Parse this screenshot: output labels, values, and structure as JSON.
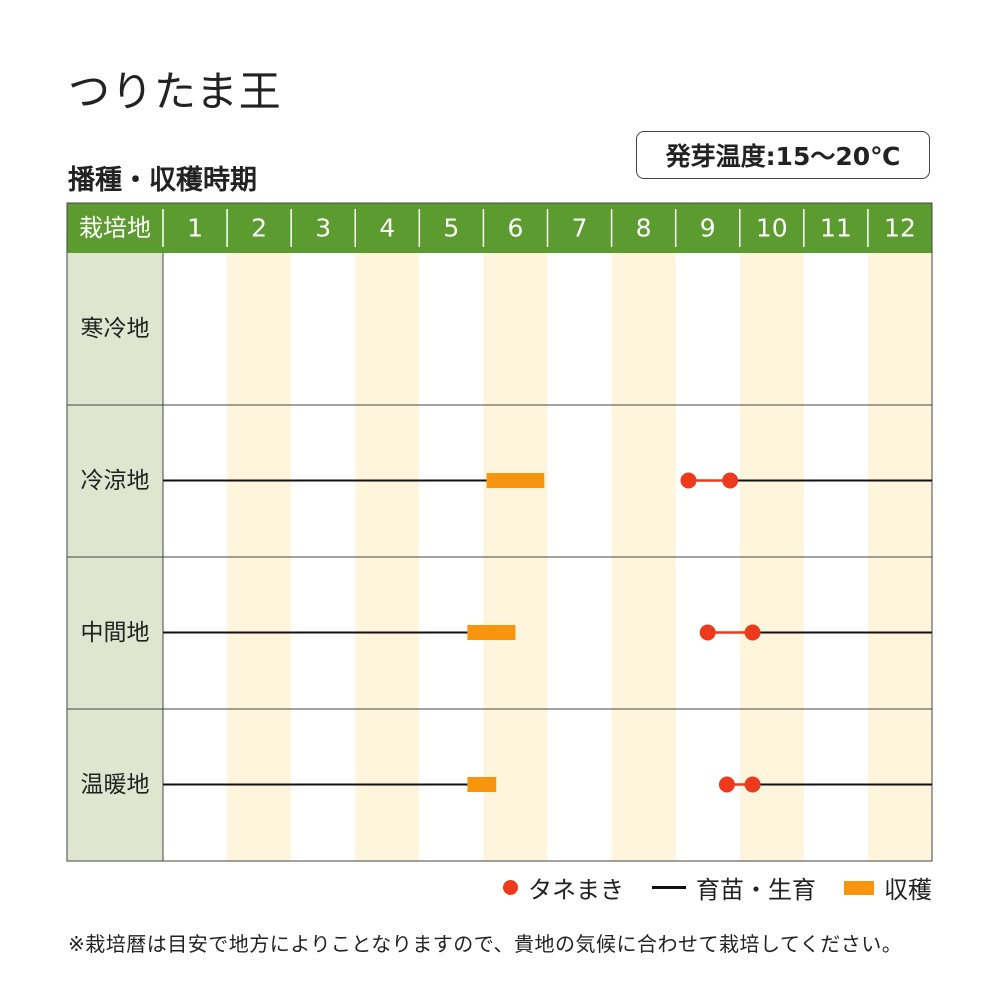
{
  "title": "つりたま王",
  "subtitle": "播種・収穫時期",
  "germination_temp": "発芽温度:15〜20℃",
  "colors": {
    "header_green": "#5c9b2f",
    "row_label_bg": "#dfe6cf",
    "band_alt": "#fdf5dc",
    "sowing": "#ee3a1c",
    "growing": "#111111",
    "harvest": "#f7950f"
  },
  "legend": {
    "sowing": "タネまき",
    "growing": "育苗・生育",
    "harvest": "収穫"
  },
  "note": "※栽培暦は目安で地方によりことなりますので、貴地の気候に合わせて栽培してください。",
  "chart_data": {
    "type": "gantt",
    "header_label": "栽培地",
    "months": [
      "1",
      "2",
      "3",
      "4",
      "5",
      "6",
      "7",
      "8",
      "9",
      "10",
      "11",
      "12"
    ],
    "x_unit": "month",
    "x_range": [
      1,
      13
    ],
    "rows": [
      {
        "region": "寒冷地",
        "sowing": null,
        "growing": [],
        "harvest": null
      },
      {
        "region": "冷涼地",
        "sowing": [
          9.2,
          9.85
        ],
        "growing": [
          [
            1,
            6.05
          ],
          [
            9.85,
            13
          ]
        ],
        "harvest": [
          6.05,
          6.95
        ]
      },
      {
        "region": "中間地",
        "sowing": [
          9.5,
          10.2
        ],
        "growing": [
          [
            1,
            5.75
          ],
          [
            10.2,
            13
          ]
        ],
        "harvest": [
          5.75,
          6.5
        ]
      },
      {
        "region": "温暖地",
        "sowing": [
          9.8,
          10.2
        ],
        "growing": [
          [
            1,
            5.75
          ],
          [
            10.2,
            13
          ]
        ],
        "harvest": [
          5.75,
          6.2
        ]
      }
    ]
  }
}
